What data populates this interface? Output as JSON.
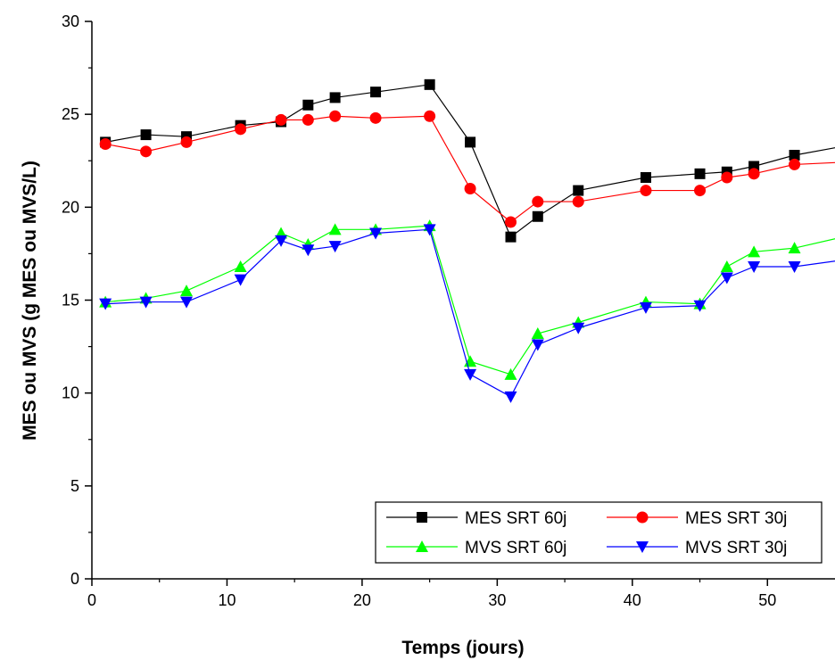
{
  "chart_data": {
    "type": "line",
    "xlabel": "Temps (jours)",
    "ylabel": "MES ou MVS (g MES ou MVS/L)",
    "xlim": [
      0,
      55
    ],
    "ylim": [
      0,
      30
    ],
    "xticks": [
      0,
      10,
      20,
      30,
      40,
      50
    ],
    "yticks": [
      0,
      5,
      10,
      15,
      20,
      25,
      30
    ],
    "xtick_labels": [
      "0",
      "10",
      "20",
      "30",
      "40",
      "50"
    ],
    "ytick_labels": [
      "0",
      "5",
      "10",
      "15",
      "20",
      "25",
      "30"
    ],
    "legend_position": "bottom-right",
    "grid": false,
    "series": [
      {
        "name": "MES SRT 60j",
        "color": "#000000",
        "marker": "square",
        "x": [
          1,
          4,
          7,
          11,
          14,
          16,
          18,
          21,
          25,
          28,
          31,
          33,
          36,
          41,
          45,
          47,
          49,
          52,
          55
        ],
        "y": [
          23.5,
          23.9,
          23.8,
          24.4,
          24.6,
          25.5,
          25.9,
          26.2,
          26.6,
          23.5,
          18.4,
          19.5,
          20.9,
          21.6,
          21.8,
          21.9,
          22.2,
          22.8,
          23.2
        ]
      },
      {
        "name": "MES SRT 30j",
        "color": "#ff0000",
        "marker": "circle",
        "x": [
          1,
          4,
          7,
          11,
          14,
          16,
          18,
          21,
          25,
          28,
          31,
          33,
          36,
          41,
          45,
          47,
          49,
          52,
          55
        ],
        "y": [
          23.4,
          23.0,
          23.5,
          24.2,
          24.7,
          24.7,
          24.9,
          24.8,
          24.9,
          21.0,
          19.2,
          20.3,
          20.3,
          20.9,
          20.9,
          21.6,
          21.8,
          22.3,
          22.4
        ]
      },
      {
        "name": "MVS SRT 60j",
        "color": "#00ff00",
        "marker": "triangle-up",
        "x": [
          1,
          4,
          7,
          11,
          14,
          16,
          18,
          21,
          25,
          28,
          31,
          33,
          36,
          41,
          45,
          47,
          49,
          52,
          55
        ],
        "y": [
          14.9,
          15.1,
          15.5,
          16.8,
          18.6,
          18.0,
          18.8,
          18.8,
          19.0,
          11.7,
          11.0,
          13.2,
          13.8,
          14.9,
          14.8,
          16.8,
          17.6,
          17.8,
          18.3
        ]
      },
      {
        "name": "MVS SRT 30j",
        "color": "#0000ff",
        "marker": "triangle-down",
        "x": [
          1,
          4,
          7,
          11,
          14,
          16,
          18,
          21,
          25,
          28,
          31,
          33,
          36,
          41,
          45,
          47,
          49,
          52,
          55
        ],
        "y": [
          14.8,
          14.9,
          14.9,
          16.1,
          18.2,
          17.7,
          17.9,
          18.6,
          18.8,
          11.0,
          9.8,
          12.6,
          13.5,
          14.6,
          14.7,
          16.2,
          16.8,
          16.8,
          17.1
        ]
      }
    ]
  }
}
